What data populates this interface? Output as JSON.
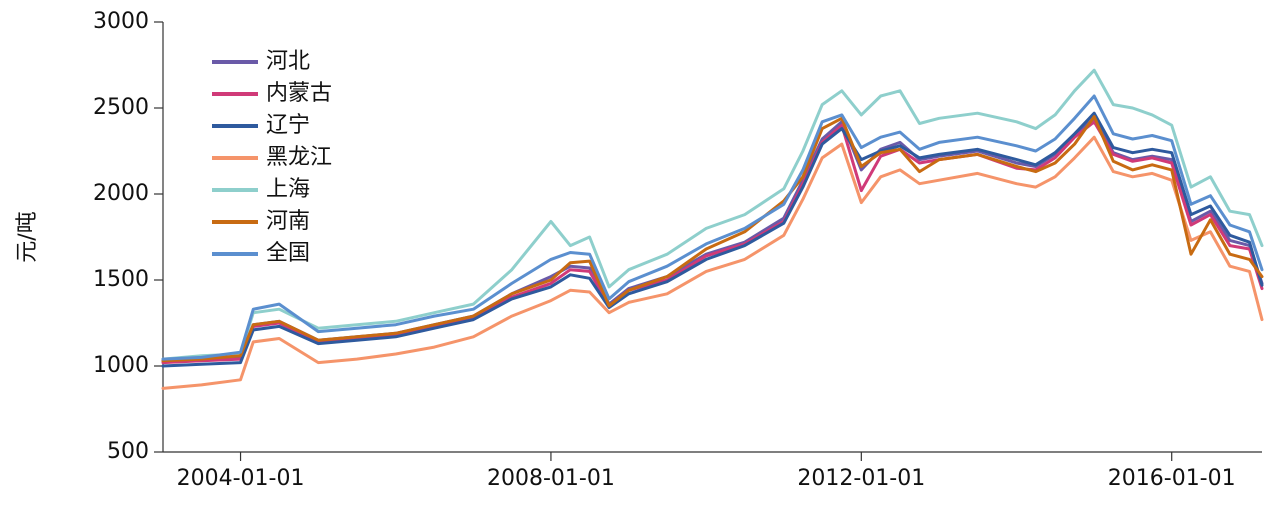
{
  "chart_data": {
    "type": "line",
    "title": "",
    "xlabel": "",
    "ylabel": "元/吨",
    "xlim": [
      "2003-01-01",
      "2017-03-01"
    ],
    "ylim": [
      500,
      3000
    ],
    "y_ticks": [
      500,
      1000,
      1500,
      2000,
      2500,
      3000
    ],
    "x_ticks": [
      "2004-01-01",
      "2008-01-01",
      "2012-01-01",
      "2016-01-01"
    ],
    "grid": false,
    "legend_position": "top-left",
    "x": [
      "2003-01",
      "2003-07",
      "2004-01",
      "2004-03",
      "2004-07",
      "2005-01",
      "2005-07",
      "2006-01",
      "2006-07",
      "2007-01",
      "2007-07",
      "2008-01",
      "2008-04",
      "2008-07",
      "2008-10",
      "2009-01",
      "2009-07",
      "2010-01",
      "2010-07",
      "2011-01",
      "2011-04",
      "2011-07",
      "2011-10",
      "2012-01",
      "2012-04",
      "2012-07",
      "2012-10",
      "2013-01",
      "2013-07",
      "2014-01",
      "2014-04",
      "2014-07",
      "2014-10",
      "2015-01",
      "2015-04",
      "2015-07",
      "2015-10",
      "2016-01",
      "2016-04",
      "2016-07",
      "2016-10",
      "2017-01",
      "2017-03"
    ],
    "series": [
      {
        "name": "河北",
        "color": "#6a5aa8",
        "values": [
          1030,
          1040,
          1050,
          1240,
          1260,
          1150,
          1170,
          1190,
          1240,
          1290,
          1420,
          1520,
          1580,
          1570,
          1360,
          1450,
          1520,
          1650,
          1720,
          1860,
          2080,
          2320,
          2420,
          2140,
          2260,
          2300,
          2200,
          2220,
          2250,
          2180,
          2160,
          2230,
          2340,
          2440,
          2240,
          2200,
          2220,
          2200,
          1840,
          1900,
          1730,
          1700,
          1480
        ]
      },
      {
        "name": "内蒙古",
        "color": "#d03a78",
        "values": [
          1020,
          1030,
          1040,
          1230,
          1250,
          1140,
          1160,
          1180,
          1230,
          1280,
          1400,
          1480,
          1560,
          1550,
          1350,
          1440,
          1500,
          1640,
          1710,
          1840,
          2060,
          2300,
          2400,
          2020,
          2220,
          2260,
          2180,
          2200,
          2230,
          2150,
          2140,
          2210,
          2330,
          2420,
          2230,
          2190,
          2210,
          2180,
          1820,
          1880,
          1700,
          1680,
          1450
        ]
      },
      {
        "name": "辽宁",
        "color": "#2e5a9e",
        "values": [
          1000,
          1010,
          1020,
          1210,
          1230,
          1130,
          1150,
          1170,
          1220,
          1270,
          1390,
          1460,
          1530,
          1510,
          1340,
          1420,
          1490,
          1620,
          1700,
          1830,
          2040,
          2290,
          2380,
          2200,
          2250,
          2280,
          2210,
          2230,
          2260,
          2200,
          2170,
          2240,
          2350,
          2470,
          2270,
          2240,
          2260,
          2240,
          1880,
          1930,
          1760,
          1720,
          1470
        ]
      },
      {
        "name": "黑龙江",
        "color": "#f5946a",
        "values": [
          870,
          890,
          920,
          1140,
          1160,
          1020,
          1040,
          1070,
          1110,
          1170,
          1290,
          1380,
          1440,
          1430,
          1310,
          1370,
          1420,
          1550,
          1620,
          1760,
          1970,
          2210,
          2290,
          1950,
          2100,
          2140,
          2060,
          2080,
          2120,
          2060,
          2040,
          2100,
          2210,
          2330,
          2130,
          2100,
          2120,
          2080,
          1730,
          1780,
          1580,
          1550,
          1270
        ]
      },
      {
        "name": "上海",
        "color": "#8ecfcc",
        "values": [
          1040,
          1060,
          1070,
          1310,
          1330,
          1220,
          1240,
          1260,
          1310,
          1360,
          1560,
          1840,
          1700,
          1750,
          1460,
          1560,
          1650,
          1800,
          1880,
          2030,
          2250,
          2520,
          2600,
          2460,
          2570,
          2600,
          2410,
          2440,
          2470,
          2420,
          2380,
          2460,
          2600,
          2720,
          2520,
          2500,
          2460,
          2400,
          2040,
          2100,
          1900,
          1880,
          1700
        ]
      },
      {
        "name": "河南",
        "color": "#c86b12",
        "values": [
          1030,
          1040,
          1060,
          1240,
          1260,
          1150,
          1170,
          1190,
          1240,
          1290,
          1420,
          1500,
          1600,
          1610,
          1350,
          1440,
          1520,
          1680,
          1780,
          1960,
          2100,
          2380,
          2440,
          2160,
          2240,
          2260,
          2130,
          2200,
          2230,
          2160,
          2130,
          2180,
          2290,
          2450,
          2190,
          2140,
          2170,
          2140,
          1650,
          1850,
          1650,
          1620,
          1520
        ]
      },
      {
        "name": "全国",
        "color": "#5b8fcf",
        "values": [
          1040,
          1050,
          1080,
          1330,
          1360,
          1200,
          1220,
          1240,
          1290,
          1330,
          1480,
          1620,
          1660,
          1650,
          1390,
          1490,
          1580,
          1710,
          1800,
          1940,
          2140,
          2420,
          2460,
          2270,
          2330,
          2360,
          2260,
          2300,
          2330,
          2280,
          2250,
          2320,
          2440,
          2570,
          2350,
          2320,
          2340,
          2310,
          1940,
          1990,
          1820,
          1780,
          1560
        ]
      }
    ]
  }
}
